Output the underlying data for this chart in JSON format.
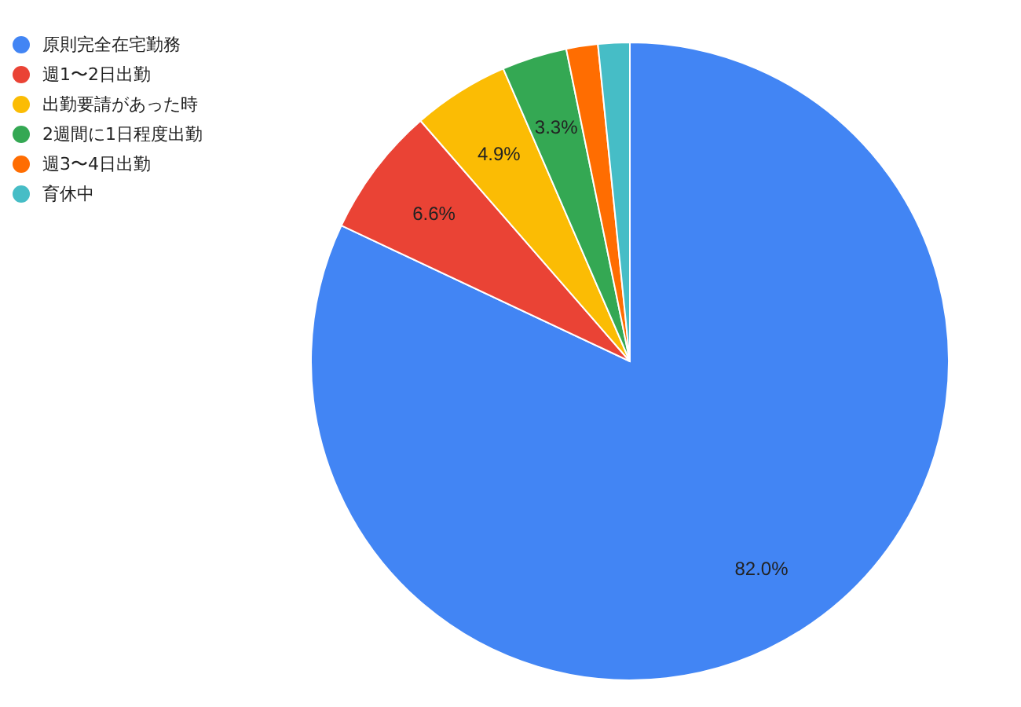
{
  "chart_data": {
    "type": "pie",
    "categories": [
      "原則完全在宅勤務",
      "週1〜2日出勤",
      "出勤要請があった時",
      "2週間に1日程度出勤",
      "週3〜4日出勤",
      "育休中"
    ],
    "values": [
      82.0,
      6.6,
      4.9,
      3.3,
      1.6,
      1.6
    ],
    "colors": [
      "#4285f4",
      "#ea4335",
      "#fbbc04",
      "#34a853",
      "#ff6d01",
      "#46bdc6"
    ],
    "value_labels": [
      "82.0%",
      "6.6%",
      "4.9%",
      "3.3%",
      null,
      null
    ],
    "legend": "top left"
  }
}
